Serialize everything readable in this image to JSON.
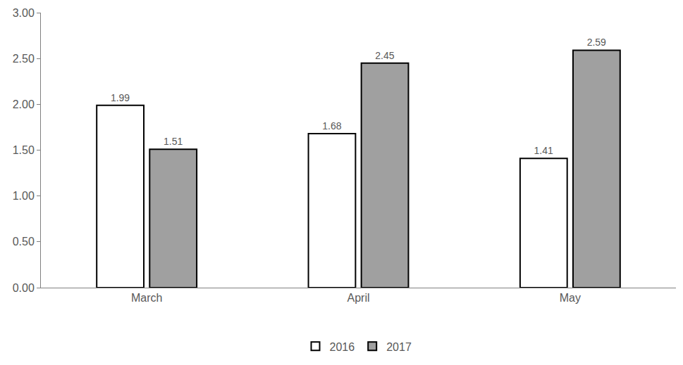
{
  "chart_data": {
    "type": "bar",
    "categories": [
      "March",
      "April",
      "May"
    ],
    "series": [
      {
        "name": "2016",
        "color": "#ffffff",
        "values": [
          1.99,
          1.68,
          1.41
        ]
      },
      {
        "name": "2017",
        "color": "#a0a0a0",
        "values": [
          1.51,
          2.45,
          2.59
        ]
      }
    ],
    "ylim": [
      0,
      3
    ],
    "yticks": [
      {
        "value": 0,
        "label": "0.00"
      },
      {
        "value": 0.5,
        "label": "0.50"
      },
      {
        "value": 1,
        "label": "1.00"
      },
      {
        "value": 1.5,
        "label": "1.50"
      },
      {
        "value": 2,
        "label": "2.00"
      },
      {
        "value": 2.5,
        "label": "2.50"
      },
      {
        "value": 3,
        "label": "3.00"
      }
    ],
    "grid": false,
    "legend": "bottom",
    "data_labels": true
  }
}
